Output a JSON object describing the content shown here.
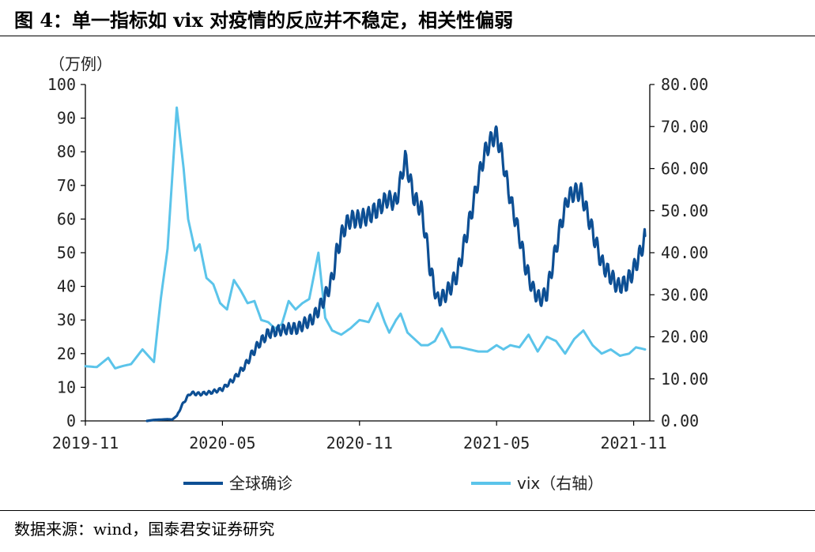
{
  "title": "图 4：单一指标如 vix 对疫情的反应并不稳定，相关性偏弱",
  "source": "数据来源：wind，国泰君安证券研究",
  "colors": {
    "cases": "#0d4f94",
    "vix": "#5bc4ea",
    "axis": "#000000"
  },
  "chart_data": {
    "type": "line",
    "title": "",
    "y_unit_label": "（万例）",
    "x_ticks": [
      "2019-11",
      "2020-05",
      "2020-11",
      "2021-05",
      "2021-11"
    ],
    "x_range": [
      "2019-11",
      "2021-11 (+0.5m)"
    ],
    "y_left": {
      "range": [
        0,
        100
      ],
      "ticks": [
        "0",
        "10",
        "20",
        "30",
        "40",
        "50",
        "60",
        "70",
        "80",
        "90",
        "100"
      ]
    },
    "y_right": {
      "range": [
        0,
        80
      ],
      "ticks": [
        "0.00",
        "10.00",
        "20.00",
        "30.00",
        "40.00",
        "50.00",
        "60.00",
        "70.00",
        "80.00"
      ]
    },
    "legend": {
      "position": "bottom",
      "entries": [
        "全球确诊",
        "vix（右轴）"
      ]
    },
    "series": [
      {
        "name": "全球确诊",
        "axis": "left",
        "x_months": [
          2.7,
          3.0,
          3.3,
          3.6,
          3.8,
          4.0,
          4.3,
          4.6,
          5.0,
          5.5,
          6.0,
          6.5,
          7.0,
          7.3,
          7.6,
          8.0,
          8.5,
          9.0,
          9.3,
          9.6,
          9.9,
          10.2,
          10.5,
          10.8,
          11.0,
          11.3,
          11.6,
          12.0,
          12.4,
          12.8,
          13.2,
          13.6,
          14.0,
          14.4,
          14.7,
          14.9,
          15.1,
          15.4,
          15.7,
          16.0,
          16.3,
          16.6,
          16.9,
          17.2,
          17.5,
          17.8,
          18.0,
          18.2,
          18.6,
          19.0,
          19.3,
          19.6,
          19.9,
          20.2,
          20.5,
          20.8,
          21.1,
          21.4,
          21.7,
          22.0,
          22.3,
          22.6,
          23.0,
          23.3,
          23.7,
          24.0,
          24.3,
          24.5
        ],
        "values": [
          0,
          0.3,
          0.4,
          0.5,
          0.4,
          1.5,
          5.5,
          8.3,
          8.0,
          8.5,
          9.5,
          12.5,
          16.5,
          20.0,
          23.0,
          26.0,
          27.0,
          27.5,
          27.5,
          29.0,
          30.0,
          33.0,
          37.0,
          42.0,
          50.0,
          57.0,
          60.0,
          60.0,
          61.0,
          63.0,
          66.0,
          65.0,
          78.0,
          66.0,
          63.0,
          55.0,
          45.0,
          36.0,
          37.0,
          40.0,
          44.0,
          53.0,
          62.0,
          72.0,
          80.0,
          84.0,
          85.0,
          80.0,
          66.0,
          55.0,
          45.0,
          39.0,
          36.0,
          38.0,
          48.0,
          58.0,
          66.0,
          68.0,
          68.0,
          61.0,
          54.0,
          47.0,
          43.0,
          40.0,
          41.0,
          45.0,
          50.0,
          55.0
        ]
      },
      {
        "name": "vix（右轴）",
        "axis": "right",
        "x_months": [
          0,
          0.5,
          1.0,
          1.3,
          1.6,
          2.0,
          2.5,
          3.0,
          3.3,
          3.6,
          4.0,
          4.3,
          4.5,
          4.8,
          5.0,
          5.3,
          5.6,
          5.9,
          6.2,
          6.5,
          6.8,
          7.1,
          7.4,
          7.7,
          8.0,
          8.3,
          8.6,
          8.9,
          9.2,
          9.5,
          9.8,
          10.2,
          10.5,
          10.8,
          11.2,
          11.6,
          12.0,
          12.4,
          12.8,
          13.1,
          13.3,
          13.6,
          13.8,
          14.1,
          14.4,
          14.7,
          15.0,
          15.3,
          15.6,
          16.0,
          16.4,
          16.8,
          17.2,
          17.6,
          18.0,
          18.3,
          18.6,
          19.0,
          19.4,
          19.8,
          20.2,
          20.6,
          21.0,
          21.4,
          21.8,
          22.2,
          22.6,
          23.0,
          23.4,
          23.8,
          24.1,
          24.5
        ],
        "values": [
          13.0,
          12.8,
          15.0,
          12.5,
          13.0,
          13.5,
          17.0,
          14.0,
          29.0,
          41.0,
          74.5,
          60.0,
          48.0,
          40.5,
          42.0,
          34.0,
          32.5,
          28.0,
          26.5,
          33.5,
          31.0,
          28.0,
          28.5,
          24.0,
          23.5,
          22.0,
          23.0,
          28.5,
          26.5,
          28.0,
          29.0,
          40.0,
          24.5,
          21.5,
          20.5,
          22.0,
          24.0,
          23.5,
          28.0,
          23.5,
          21.0,
          24.0,
          25.5,
          21.0,
          19.5,
          18.0,
          18.0,
          19.0,
          22.0,
          17.5,
          17.5,
          17.0,
          16.5,
          16.5,
          18.0,
          17.0,
          18.0,
          17.5,
          20.5,
          16.5,
          20.0,
          19.0,
          16.0,
          19.5,
          21.5,
          18.0,
          16.0,
          17.0,
          15.5,
          16.0,
          17.5,
          17.0
        ]
      }
    ]
  }
}
